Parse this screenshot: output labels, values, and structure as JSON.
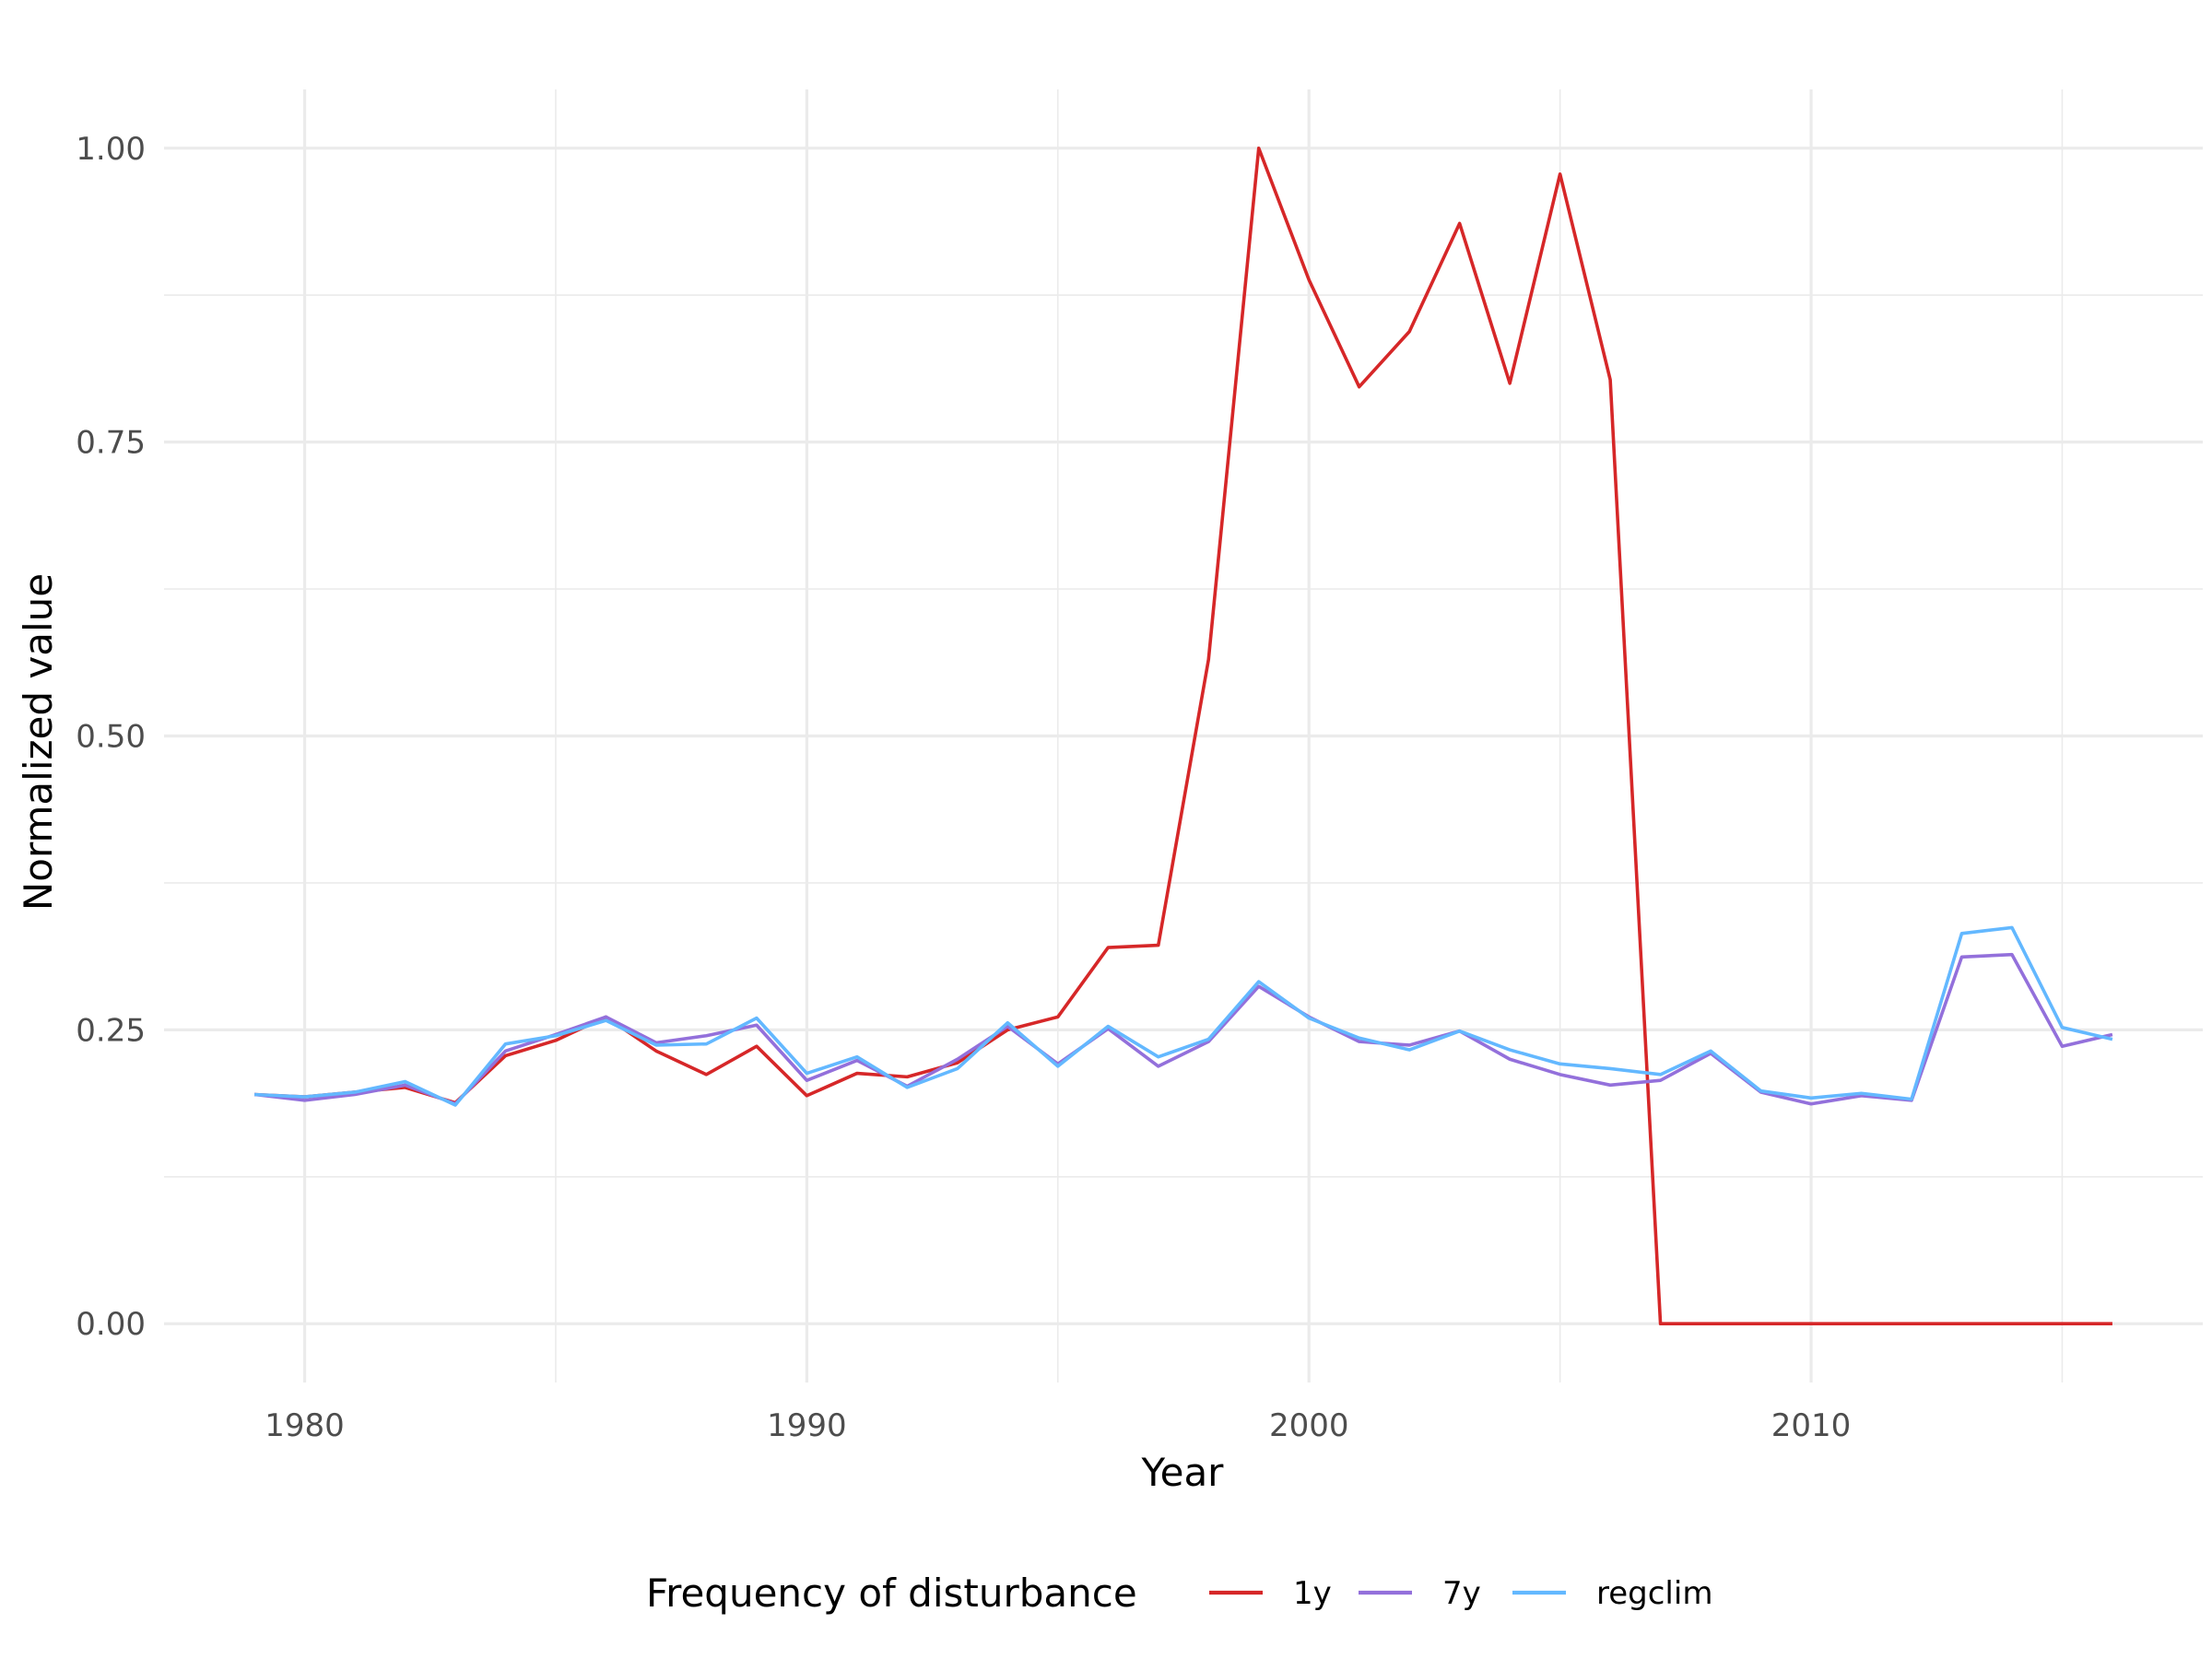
{
  "chart_data": {
    "type": "line",
    "xlabel": "Year",
    "ylabel": "Normalized value",
    "xlim": [
      1977.2,
      2017.8
    ],
    "ylim": [
      -0.05,
      1.05
    ],
    "x_ticks": [
      1980,
      1990,
      2000,
      2010
    ],
    "x_tick_labels": [
      "1980",
      "1990",
      "2000",
      "2010"
    ],
    "y_ticks": [
      0,
      0.25,
      0.5,
      0.75,
      1
    ],
    "y_tick_labels": [
      "0.00",
      "0.25",
      "0.50",
      "0.75",
      "1.00"
    ],
    "grid": true,
    "legend": {
      "title": "Frequency of disturbance",
      "position": "bottom"
    },
    "x": [
      1979,
      1980,
      1981,
      1982,
      1983,
      1984,
      1985,
      1986,
      1987,
      1988,
      1989,
      1990,
      1991,
      1992,
      1993,
      1994,
      1995,
      1996,
      1997,
      1998,
      1999,
      2000,
      2001,
      2002,
      2003,
      2004,
      2005,
      2006,
      2007,
      2008,
      2009,
      2010,
      2011,
      2012,
      2013,
      2014,
      2015,
      2016
    ],
    "series": [
      {
        "name": "1y",
        "color": "#d62728",
        "values": [
          0.195,
          0.193,
          0.197,
          0.201,
          0.188,
          0.228,
          0.241,
          0.261,
          0.232,
          0.212,
          0.236,
          0.194,
          0.213,
          0.21,
          0.222,
          0.25,
          0.261,
          0.32,
          0.322,
          0.565,
          1.0,
          0.888,
          0.797,
          0.844,
          0.936,
          0.8,
          0.978,
          0.803,
          0.0,
          0.0,
          0.0,
          0.0,
          0.0,
          0.0,
          0.0,
          0.0,
          0.0,
          0.0
        ]
      },
      {
        "name": "7y",
        "color": "#9370db",
        "values": [
          0.195,
          0.19,
          0.195,
          0.203,
          0.187,
          0.232,
          0.246,
          0.261,
          0.239,
          0.245,
          0.254,
          0.207,
          0.224,
          0.202,
          0.225,
          0.253,
          0.221,
          0.251,
          0.219,
          0.24,
          0.287,
          0.261,
          0.24,
          0.237,
          0.249,
          0.225,
          0.212,
          0.203,
          0.207,
          0.23,
          0.197,
          0.187,
          0.194,
          0.19,
          0.312,
          0.314,
          0.236,
          0.246
        ]
      },
      {
        "name": "regclim",
        "color": "#63b8ff",
        "values": [
          0.195,
          0.193,
          0.197,
          0.206,
          0.186,
          0.238,
          0.245,
          0.258,
          0.237,
          0.238,
          0.26,
          0.213,
          0.227,
          0.201,
          0.217,
          0.256,
          0.219,
          0.253,
          0.227,
          0.242,
          0.291,
          0.26,
          0.243,
          0.233,
          0.249,
          0.233,
          0.221,
          0.217,
          0.212,
          0.232,
          0.198,
          0.192,
          0.196,
          0.191,
          0.332,
          0.337,
          0.252,
          0.242
        ]
      }
    ]
  }
}
